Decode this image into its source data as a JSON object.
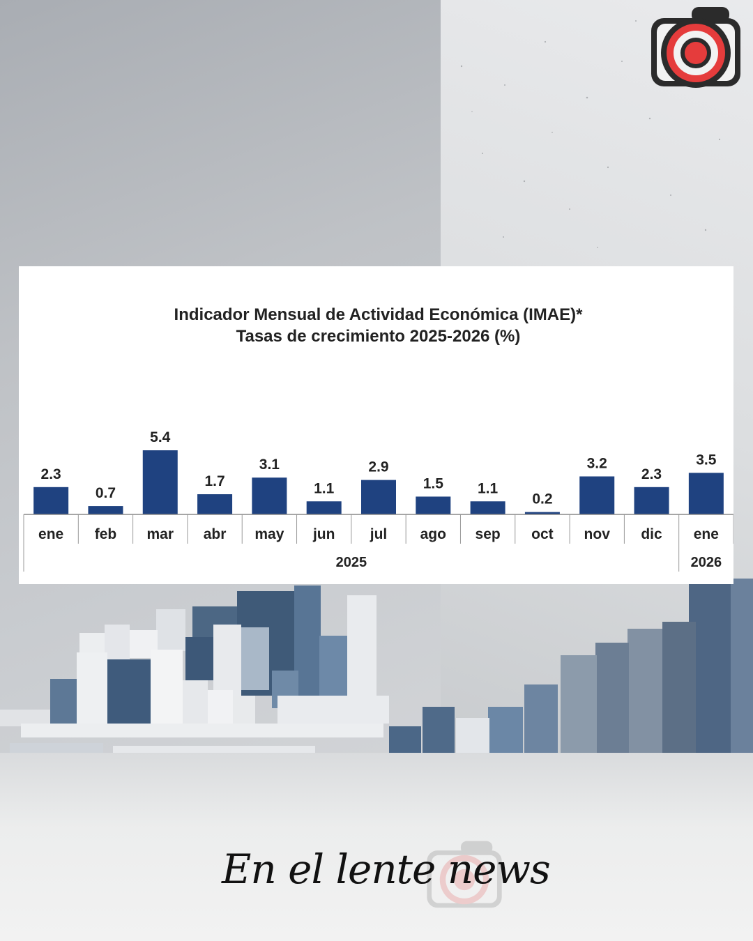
{
  "chart_data": {
    "type": "bar",
    "title": "Indicador Mensual de Actividad Económica (IMAE)*",
    "subtitle": "Tasas de crecimiento 2025-2026 (%)",
    "categories": [
      "ene",
      "feb",
      "mar",
      "abr",
      "may",
      "jun",
      "jul",
      "ago",
      "sep",
      "oct",
      "nov",
      "dic",
      "ene"
    ],
    "values": [
      2.3,
      0.7,
      5.4,
      1.7,
      3.1,
      1.1,
      2.9,
      1.5,
      1.1,
      0.2,
      3.2,
      2.3,
      3.5
    ],
    "value_labels": [
      "2.3",
      "0.7",
      "5.4",
      "1.7",
      "3.1",
      "1.1",
      "2.9",
      "1.5",
      "1.1",
      "0.2",
      "3.2",
      "2.3",
      "3.5"
    ],
    "year_groups": [
      {
        "label": "2025",
        "start": 0,
        "end": 11
      },
      {
        "label": "2026",
        "start": 12,
        "end": 12
      }
    ],
    "ylim": [
      0,
      5.4
    ],
    "grid": false,
    "bar_color": "#1f4280"
  },
  "brand": {
    "name": "En el lente news",
    "logo": "camera-icon"
  }
}
